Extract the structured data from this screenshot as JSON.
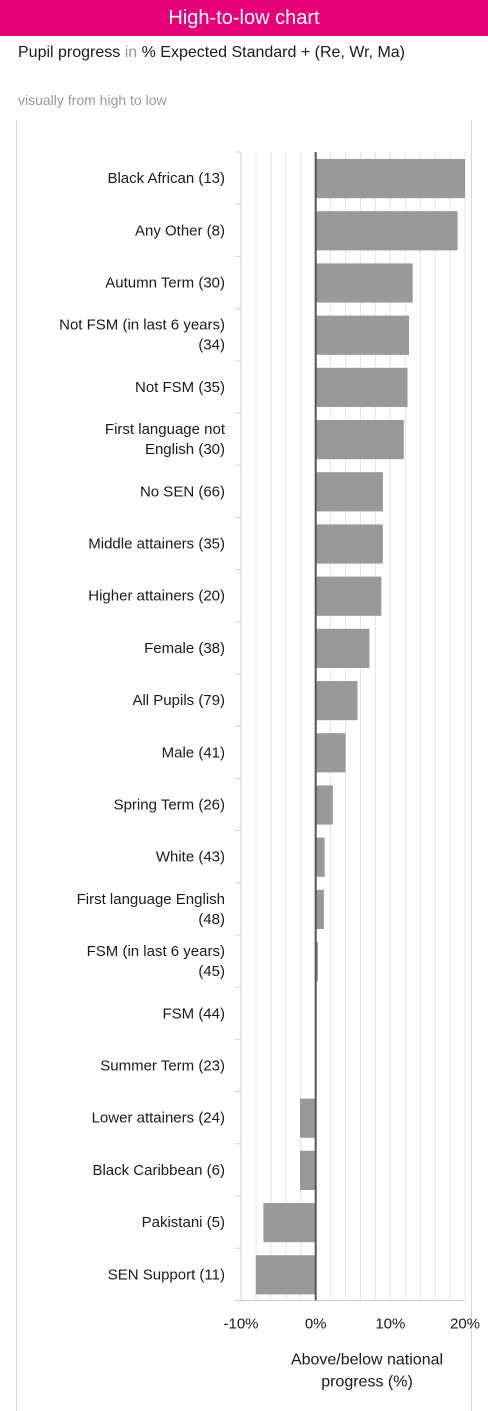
{
  "header": {
    "title": "High-to-low chart"
  },
  "subtitle": {
    "part1": "Pupil progress ",
    "part2": "in ",
    "part3": "% Expected Standard + (Re, Wr, Ma)"
  },
  "caption": "visually from high to low",
  "chart_data": {
    "type": "bar",
    "orientation": "horizontal",
    "categories": [
      "Black African (13)",
      "Any Other (8)",
      "Autumn Term (30)",
      "Not FSM (in last 6 years) (34)",
      "Not FSM (35)",
      "First language not English (30)",
      "No SEN (66)",
      "Middle attainers (35)",
      "Higher attainers (20)",
      "Female (38)",
      "All Pupils (79)",
      "Male (41)",
      "Spring Term (26)",
      "White (43)",
      "First language English (48)",
      "FSM (in last 6 years) (45)",
      "FSM (44)",
      "Summer Term (23)",
      "Lower attainers (24)",
      "Black Caribbean (6)",
      "Pakistani (5)",
      "SEN Support (11)"
    ],
    "values": [
      20,
      19,
      13,
      12.5,
      12.3,
      11.8,
      9,
      9,
      8.8,
      7.2,
      5.6,
      4,
      2.3,
      1.2,
      1.1,
      0.3,
      0,
      0,
      -2.1,
      -2.1,
      -7,
      -8
    ],
    "xlabel": "Above/below national progress (%)",
    "xlim": [
      -10,
      20
    ],
    "xticks": [
      "-10%",
      "0%",
      "10%",
      "20%"
    ],
    "xtick_values": [
      -10,
      0,
      10,
      20
    ],
    "bar_color": "#999999",
    "grid": true
  }
}
